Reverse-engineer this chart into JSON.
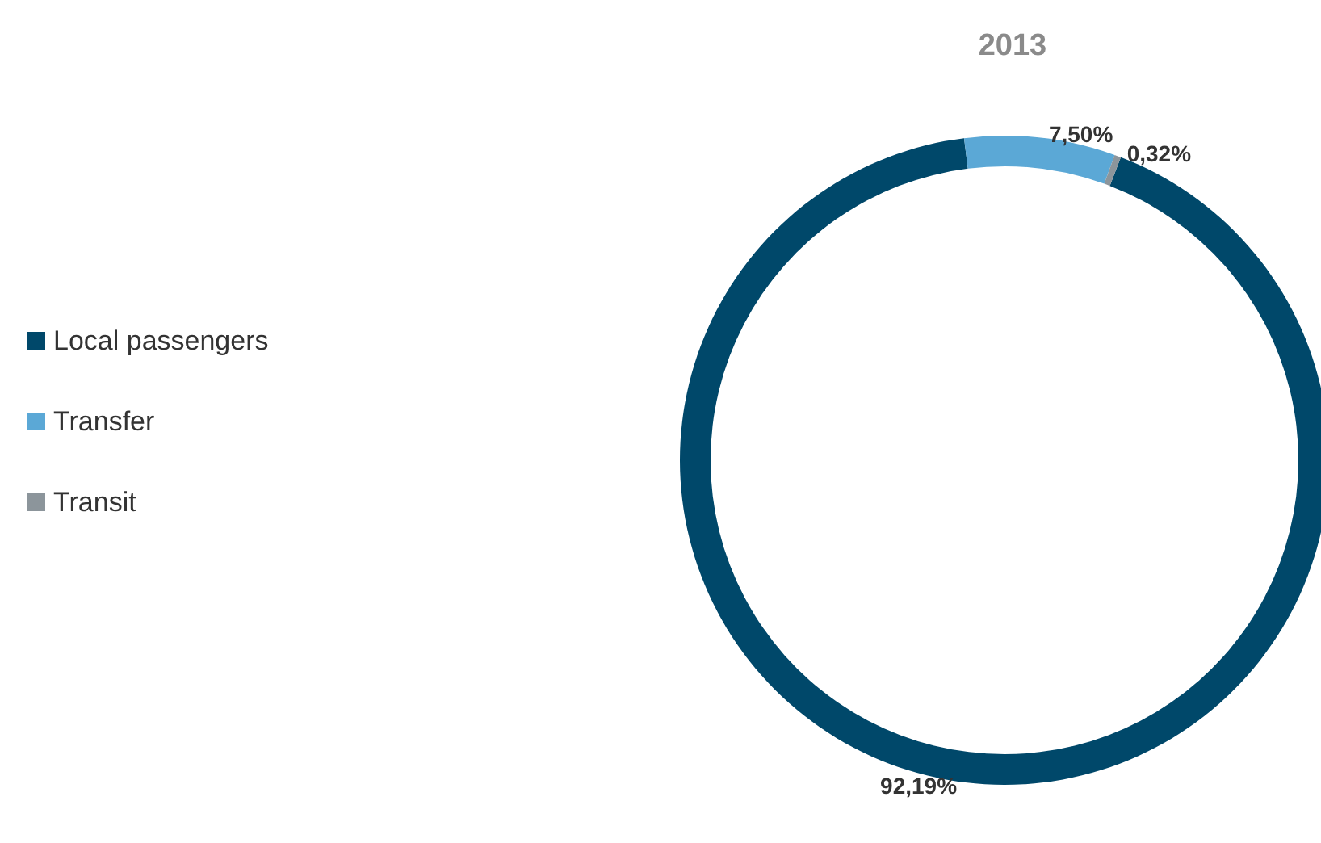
{
  "chart_data": {
    "type": "donut",
    "title": "2013",
    "categories": [
      "Local passengers",
      "Transfer",
      "Transit"
    ],
    "values": [
      92.19,
      7.5,
      0.32
    ],
    "colors": [
      "#00486a",
      "#5ba8d6",
      "#8c959b"
    ],
    "value_labels": [
      "92,19%",
      "7,50%",
      "0,32%"
    ],
    "legend": "left"
  }
}
